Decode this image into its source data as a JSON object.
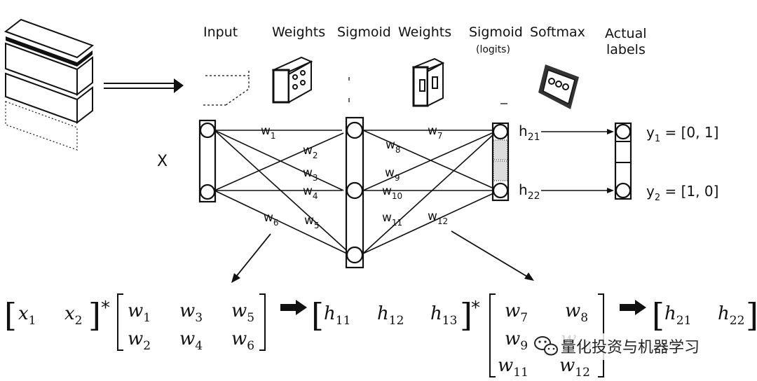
{
  "headers": {
    "input": "Input",
    "weights1": "Weights",
    "sigmoid": "Sigmoid",
    "weights2": "Weights",
    "sigmoid_logits": "Sigmoid",
    "sigmoid_logits_sub": "(logits)",
    "softmax": "Softmax",
    "actual_labels_line1": "Actual",
    "actual_labels_line2": "labels"
  },
  "input_label": "X",
  "weights": [
    "w",
    "w",
    "w",
    "w",
    "w",
    "w",
    "w",
    "w",
    "w",
    "w",
    "w",
    "w"
  ],
  "weight_subs": [
    "1",
    "2",
    "3",
    "4",
    "5",
    "6",
    "7",
    "8",
    "9",
    "10",
    "11",
    "12"
  ],
  "outputs": {
    "h21_main": "h",
    "h21_sub": "21",
    "h22_main": "h",
    "h22_sub": "22"
  },
  "labels": {
    "y1_main": "y",
    "y1_sub": "1",
    "y1_value": " = [0, 1]",
    "y2_main": "y",
    "y2_sub": "2",
    "y2_value": " = [1, 0]"
  },
  "equation": {
    "x1": "x",
    "x1_sub": "1",
    "x2": "x",
    "x2_sub": "2",
    "star": "*",
    "m1": [
      [
        "w",
        "1"
      ],
      [
        "w",
        "3"
      ],
      [
        "w",
        "5"
      ],
      [
        "w",
        "2"
      ],
      [
        "w",
        "4"
      ],
      [
        "w",
        "6"
      ]
    ],
    "h1": [
      [
        "h",
        "11"
      ],
      [
        "h",
        "12"
      ],
      [
        "h",
        "13"
      ]
    ],
    "m2": [
      [
        "w",
        "7"
      ],
      [
        "w",
        "8"
      ],
      [
        "w",
        "9"
      ],
      [
        "w",
        "10"
      ],
      [
        "w",
        "11"
      ],
      [
        "w",
        "12"
      ]
    ],
    "h2": [
      [
        "h",
        "21"
      ],
      [
        "h",
        "22"
      ]
    ]
  },
  "watermark": "量化投资与机器学习",
  "colors": {
    "ink": "#111111",
    "background": "#ffffff"
  }
}
